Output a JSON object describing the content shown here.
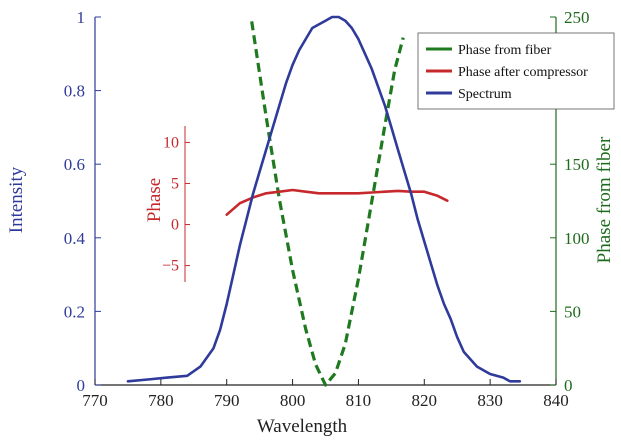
{
  "chart_data": {
    "type": "line",
    "xlabel": "Wavelength",
    "ylabel_left": "Intensity",
    "ylabel_right": "Phase from fiber",
    "xlim": [
      770,
      840
    ],
    "ylim_left": [
      0,
      1
    ],
    "ylim_right": [
      0,
      250
    ],
    "x_ticks": [
      "770",
      "780",
      "790",
      "800",
      "810",
      "820",
      "830",
      "840"
    ],
    "y_ticks_left": [
      "0",
      "0.2",
      "0.4",
      "0.6",
      "0.8",
      "1"
    ],
    "y_ticks_right": [
      "0",
      "50",
      "100",
      "150",
      "200",
      "250"
    ],
    "series": [
      {
        "name": "Phase from fiber",
        "axis": "right",
        "color": "#1f7a1f",
        "style": "dashed",
        "x": [
          793.8,
          796,
          798,
          800,
          802,
          803.5,
          805,
          806.5,
          808,
          810,
          812,
          814,
          815.5,
          816.8
        ],
        "y": [
          247,
          182,
          126,
          78,
          38,
          14,
          0,
          8,
          28,
          72,
          124,
          176,
          214,
          236
        ]
      },
      {
        "name": "Phase after compressor",
        "axis": "inset",
        "color": "#c6282c",
        "style": "solid",
        "x": [
          790,
          792,
          794,
          796,
          798,
          800,
          802,
          804,
          806,
          808,
          810,
          812,
          814,
          816,
          818,
          820,
          822,
          823.5
        ],
        "y": [
          1.2,
          2.6,
          3.3,
          3.8,
          4.0,
          4.2,
          4.0,
          3.8,
          3.8,
          3.8,
          3.8,
          3.9,
          4.0,
          4.1,
          4.0,
          4.0,
          3.5,
          2.9
        ]
      },
      {
        "name": "Spectrum",
        "axis": "left",
        "color": "#2f3b9a",
        "style": "solid",
        "x": [
          775,
          778,
          781,
          784,
          786,
          788,
          789,
          790,
          791,
          792,
          793,
          794,
          795,
          796,
          797,
          798,
          799,
          800,
          801,
          802,
          803,
          804,
          805,
          806,
          807,
          808,
          809,
          810,
          811,
          812,
          813,
          814,
          815,
          816,
          817,
          818,
          819,
          820,
          821,
          822,
          823,
          824,
          825,
          826,
          828,
          830,
          832,
          833,
          834.5
        ],
        "y": [
          0.01,
          0.015,
          0.02,
          0.025,
          0.05,
          0.1,
          0.15,
          0.22,
          0.3,
          0.38,
          0.45,
          0.52,
          0.58,
          0.64,
          0.7,
          0.76,
          0.82,
          0.87,
          0.91,
          0.94,
          0.97,
          0.98,
          0.99,
          1.0,
          1.0,
          0.99,
          0.97,
          0.94,
          0.9,
          0.86,
          0.81,
          0.76,
          0.7,
          0.64,
          0.58,
          0.52,
          0.45,
          0.39,
          0.33,
          0.27,
          0.22,
          0.18,
          0.13,
          0.09,
          0.05,
          0.03,
          0.02,
          0.01,
          0.01
        ]
      }
    ],
    "inset": {
      "ylabel": "Phase",
      "ylim": [
        -7,
        12
      ],
      "y_ticks": [
        "−5",
        "0",
        "5",
        "10"
      ]
    },
    "legend": {
      "placement": "top-right",
      "entries": [
        "Phase from fiber",
        "Phase after compressor",
        "Spectrum"
      ]
    },
    "grid": false
  }
}
